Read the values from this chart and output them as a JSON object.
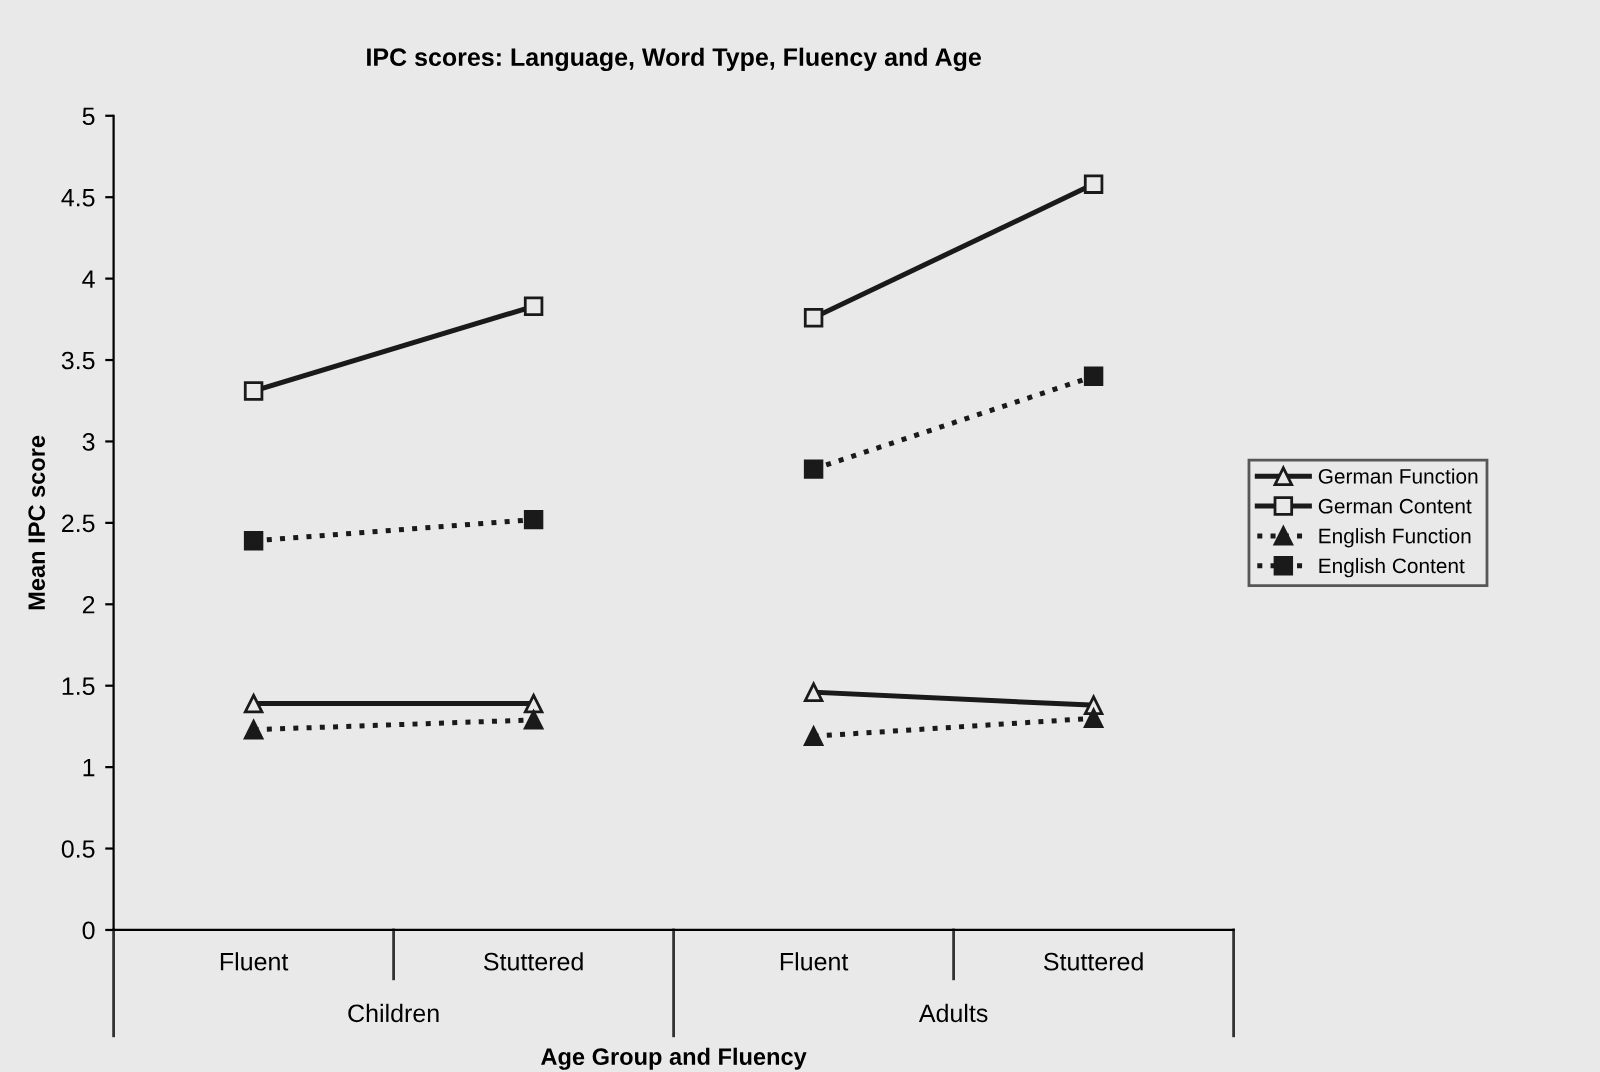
{
  "chart_data": {
    "type": "line",
    "title": "IPC scores: Language, Word Type, Fluency and Age",
    "xlabel": "Age Group and Fluency",
    "ylabel": "Mean IPC score",
    "categories": [
      "Fluent",
      "Stuttered",
      "Fluent",
      "Stuttered"
    ],
    "annotations": [
      "Children",
      "Adults"
    ],
    "series": [
      {
        "name": "German Function",
        "color": "#1a1a1a",
        "marker": "triangle",
        "line_style": "solid",
        "values": [
          1.39,
          1.39,
          null,
          null
        ]
      },
      {
        "color": "#1a1a1a",
        "marker": "triangle",
        "line_style": "solid",
        "values": [
          null,
          null,
          1.46,
          1.38
        ]
      },
      {
        "name": "German Content",
        "color": "#1a1a1a",
        "marker": "square",
        "line_style": "solid",
        "values": [
          3.31,
          3.83,
          null,
          null
        ]
      },
      {
        "color": "#1a1a1a",
        "marker": "square",
        "line_style": "solid",
        "values": [
          null,
          null,
          3.76,
          4.58
        ]
      },
      {
        "name": "English Function",
        "color": "#1a1a1a",
        "marker": "triangle",
        "line_style": "dotted",
        "values": [
          1.23,
          1.29,
          null,
          null
        ]
      },
      {
        "color": "#1a1a1a",
        "marker": "triangle",
        "line_style": "dotted",
        "values": [
          null,
          null,
          1.19,
          1.3
        ]
      },
      {
        "name": "English Content",
        "color": "#1a1a1a",
        "marker": "square",
        "line_style": "dotted",
        "values": [
          2.39,
          2.52,
          null,
          null
        ]
      },
      {
        "color": "#1a1a1a",
        "marker": "square",
        "line_style": "dotted",
        "values": [
          null,
          null,
          2.83,
          3.4
        ]
      }
    ],
    "ylim": [
      0,
      5
    ],
    "yticks": [
      0,
      0.5,
      1,
      1.5,
      2,
      2.5,
      3,
      3.5,
      4,
      4.5,
      5
    ],
    "grid": false,
    "legend": "right"
  }
}
